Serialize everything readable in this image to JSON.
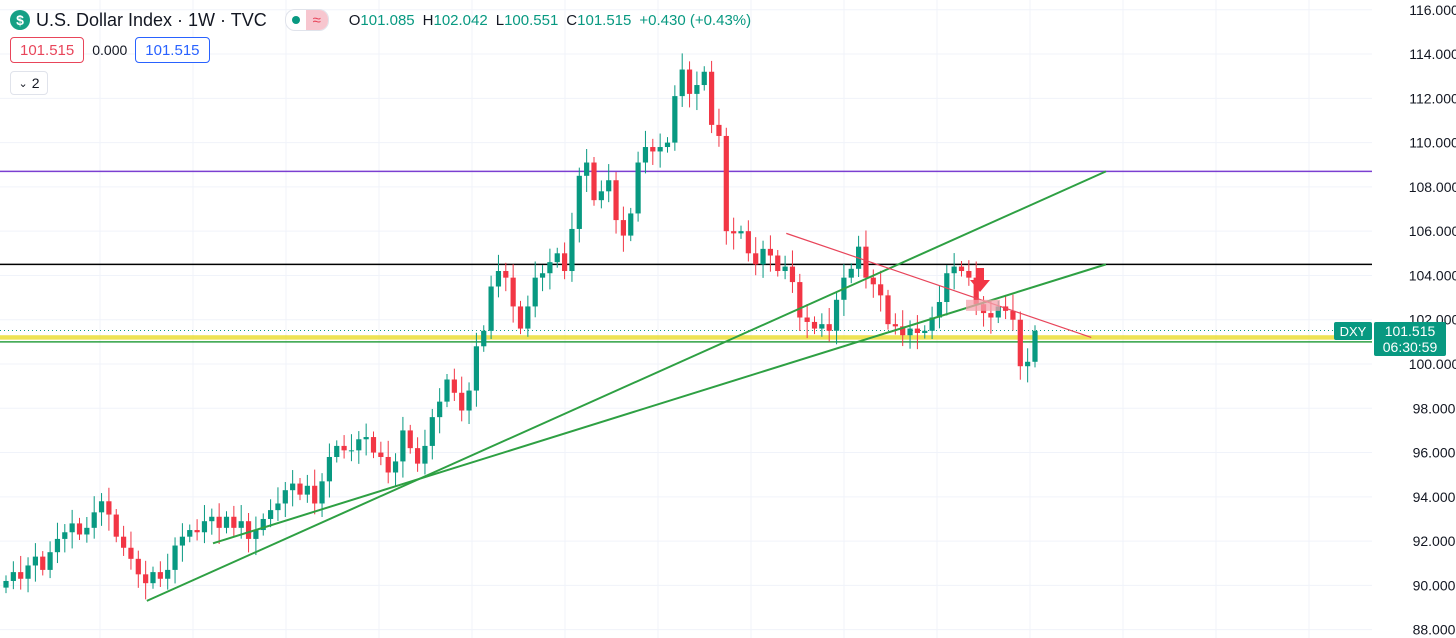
{
  "header": {
    "title": "U.S. Dollar Index · 1W · TVC",
    "logo_text": "$",
    "wave_icon_text": "≈",
    "ohlc": [
      {
        "key": "O",
        "value": "101.085"
      },
      {
        "key": "H",
        "value": "102.042"
      },
      {
        "key": "L",
        "value": "100.551"
      },
      {
        "key": "C",
        "value": "101.515"
      }
    ],
    "change": "+0.430 (+0.43%)",
    "sell_price": "101.515",
    "spread": "0.000",
    "buy_price": "101.515",
    "collapse_count": "2"
  },
  "price_scale": {
    "symbol_tag": "DXY",
    "last_price": "101.515",
    "countdown": "06:30:59"
  },
  "colors": {
    "up": "#089981",
    "down": "#f23645",
    "trendline": "#2ea043",
    "resistance_line": "#7b3fd1",
    "level_line": "#000000",
    "support_band": "#e8d91c",
    "down_trendline": "#e8455a"
  },
  "chart_data": {
    "type": "candlestick",
    "title": "U.S. Dollar Index · 1W · TVC",
    "ylim": [
      87.6,
      116.2
    ],
    "y_ticks": [
      88,
      90,
      92,
      94,
      96,
      98,
      100,
      102,
      104,
      106,
      108,
      110,
      112,
      114,
      116
    ],
    "y_tick_labels": [
      "88.000",
      "90.000",
      "92.000",
      "94.000",
      "96.000",
      "98.000",
      "100.000",
      "102.000",
      "104.000",
      "106.000",
      "108.000",
      "110.000",
      "112.000",
      "114.000",
      "116.000"
    ],
    "grid": true,
    "close": [
      90.2,
      90.6,
      90.3,
      90.9,
      91.3,
      90.7,
      91.5,
      92.1,
      92.4,
      92.8,
      92.3,
      92.6,
      93.3,
      93.8,
      93.2,
      92.2,
      91.7,
      91.2,
      90.5,
      90.1,
      90.6,
      90.3,
      90.7,
      91.8,
      92.2,
      92.5,
      92.4,
      92.9,
      93.1,
      92.6,
      93.1,
      92.6,
      92.9,
      92.1,
      92.5,
      93.0,
      93.4,
      93.7,
      94.3,
      94.6,
      94.1,
      94.5,
      93.7,
      94.7,
      95.8,
      96.3,
      96.1,
      96.1,
      96.6,
      96.7,
      96.0,
      95.8,
      95.1,
      95.6,
      97.0,
      96.2,
      95.5,
      96.3,
      97.6,
      98.3,
      99.3,
      98.7,
      97.9,
      98.8,
      100.8,
      101.5,
      103.5,
      104.2,
      103.9,
      102.6,
      101.6,
      102.6,
      103.9,
      104.1,
      104.6,
      105.0,
      104.2,
      106.1,
      108.5,
      109.1,
      107.4,
      107.8,
      108.3,
      106.5,
      105.8,
      106.8,
      109.1,
      109.8,
      109.6,
      109.8,
      110.0,
      112.1,
      113.3,
      112.2,
      112.6,
      113.2,
      110.8,
      110.3,
      106.0,
      105.9,
      106.0,
      105.0,
      104.5,
      105.2,
      104.9,
      104.2,
      104.4,
      103.7,
      102.1,
      101.9,
      101.6,
      101.8,
      101.5,
      102.9,
      103.9,
      104.3,
      105.3,
      103.9,
      103.6,
      103.1,
      101.8,
      101.7,
      101.3,
      101.6,
      101.4,
      101.5,
      102.1,
      102.8,
      104.1,
      104.4,
      104.2,
      103.9,
      102.7,
      102.3,
      102.1,
      102.6,
      102.4,
      102.0,
      99.9,
      100.1,
      101.5
    ],
    "ohlc_labels": {
      "open": "101.085",
      "high": "102.042",
      "low": "100.551",
      "close": "101.515"
    },
    "drawings": [
      {
        "kind": "horizontal_line",
        "price": 108.7,
        "color": "#7b3fd1"
      },
      {
        "kind": "horizontal_line",
        "price": 104.5,
        "color": "#000000"
      },
      {
        "kind": "horizontal_band",
        "from": 101.1,
        "to": 101.3,
        "color": "#e8d91c"
      },
      {
        "kind": "horizontal_line",
        "price": 101.0,
        "color": "#2ea043"
      },
      {
        "kind": "dotted_line",
        "price": 101.515,
        "color": "#089981"
      },
      {
        "kind": "trendline",
        "from": [
          11,
          89.3
        ],
        "to": [
          117,
          108.7
        ],
        "color": "#2ea043"
      },
      {
        "kind": "trendline",
        "from": [
          20,
          91.9
        ],
        "to": [
          117,
          104.5
        ],
        "color": "#2ea043"
      },
      {
        "kind": "trendline",
        "from": [
          98,
          105.9
        ],
        "to": [
          115,
          101.2
        ],
        "color": "#e8455a"
      },
      {
        "kind": "highlight_box",
        "x_from": [
          116,
          117
        ],
        "price_from": 102.4,
        "price_to": 102.9,
        "color": "#f4a3ad"
      },
      {
        "kind": "arrow_down",
        "x": 116,
        "price": 103.2,
        "color": "#f23645"
      }
    ]
  }
}
